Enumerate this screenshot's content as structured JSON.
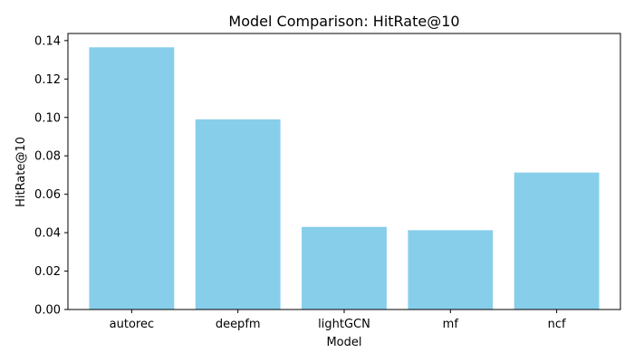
{
  "chart_data": {
    "type": "bar",
    "title": "Model Comparison: HitRate@10",
    "xlabel": "Model",
    "ylabel": "HitRate@10",
    "categories": [
      "autorec",
      "deepfm",
      "lightGCN",
      "mf",
      "ncf"
    ],
    "values": [
      0.1365,
      0.099,
      0.043,
      0.0413,
      0.0713
    ],
    "ylim": [
      0,
      0.1437
    ],
    "yticks": [
      "0.00",
      "0.02",
      "0.04",
      "0.06",
      "0.08",
      "0.10",
      "0.12",
      "0.14"
    ],
    "bar_color": "#87CEEB",
    "grid": false
  }
}
